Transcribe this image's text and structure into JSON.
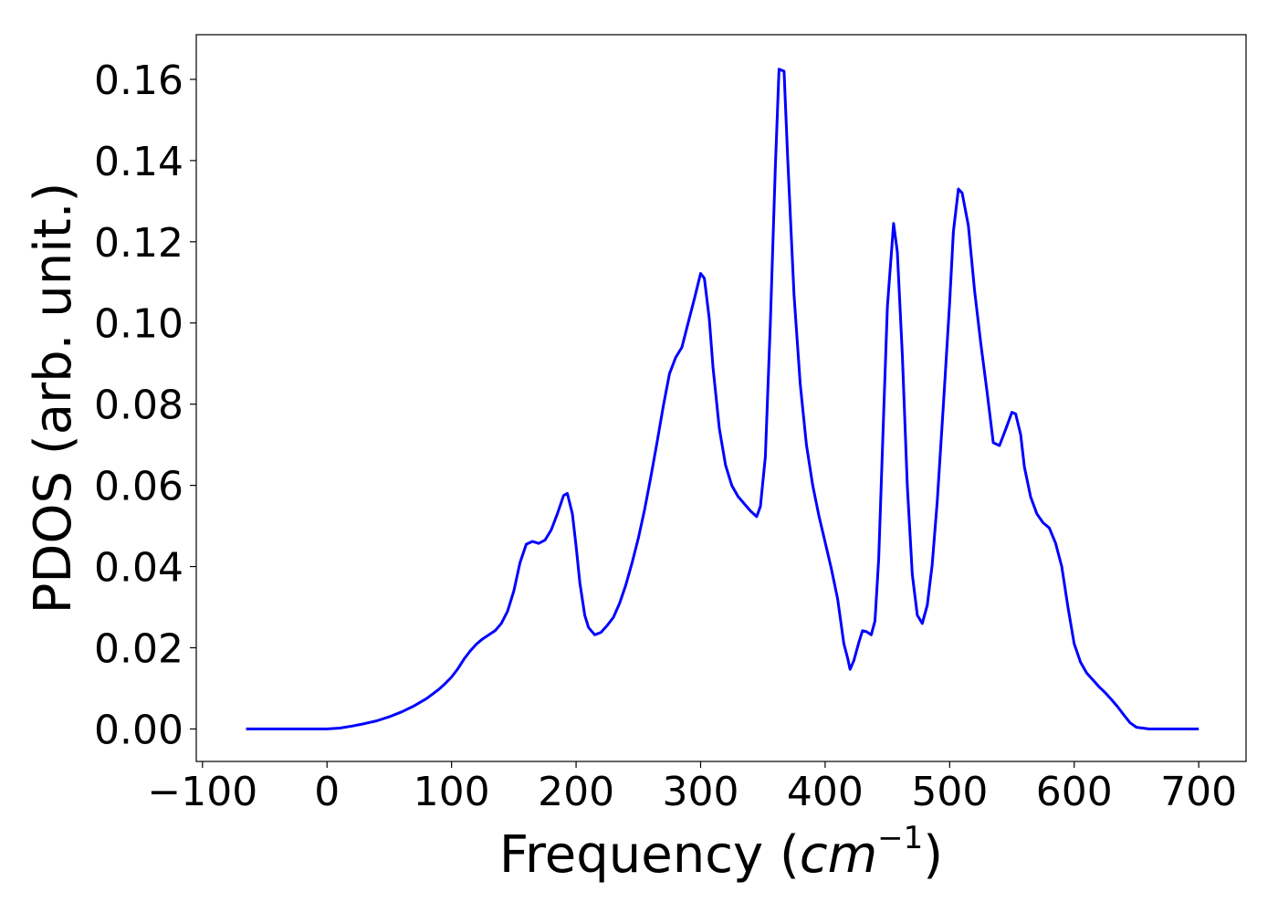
{
  "chart_data": {
    "type": "line",
    "title": "",
    "xlabel_text": "Frequency (",
    "xlabel_math": "cm",
    "xlabel_sup": "−1",
    "xlabel_close": ")",
    "ylabel": "PDOS (arb. unit.)",
    "xlim": [
      -105,
      738
    ],
    "ylim": [
      -0.008,
      0.171
    ],
    "xticks": [
      -100,
      0,
      100,
      200,
      300,
      400,
      500,
      600,
      700
    ],
    "xtick_labels": [
      "−100",
      "0",
      "100",
      "200",
      "300",
      "400",
      "500",
      "600",
      "700"
    ],
    "yticks": [
      0.0,
      0.02,
      0.04,
      0.06,
      0.08,
      0.1,
      0.12,
      0.14,
      0.16
    ],
    "ytick_labels": [
      "0.00",
      "0.02",
      "0.04",
      "0.06",
      "0.08",
      "0.10",
      "0.12",
      "0.14",
      "0.16"
    ],
    "grid": false,
    "line_color": "#0000ff",
    "series": [
      {
        "x": [
          -65,
          -40,
          -20,
          0,
          10,
          20,
          30,
          40,
          50,
          60,
          70,
          80,
          90,
          95,
          100,
          105,
          110,
          115,
          120,
          125,
          130,
          135,
          140,
          145,
          150,
          155,
          160,
          165,
          170,
          175,
          180,
          185,
          190,
          193,
          197,
          200,
          203,
          207,
          210,
          215,
          220,
          225,
          230,
          235,
          240,
          245,
          250,
          255,
          260,
          265,
          270,
          275,
          280,
          285,
          290,
          295,
          300,
          303,
          307,
          310,
          315,
          320,
          325,
          330,
          335,
          340,
          345,
          348,
          352,
          356,
          360,
          363,
          367,
          370,
          375,
          380,
          385,
          390,
          395,
          400,
          405,
          410,
          415,
          418,
          420,
          423,
          427,
          430,
          433,
          437,
          440,
          443,
          447,
          450,
          455,
          458,
          462,
          466,
          470,
          474,
          478,
          482,
          486,
          490,
          495,
          500,
          503,
          507,
          510,
          515,
          520,
          525,
          530,
          535,
          540,
          545,
          550,
          553,
          557,
          560,
          565,
          570,
          575,
          580,
          585,
          590,
          595,
          600,
          605,
          610,
          615,
          620,
          625,
          630,
          635,
          640,
          645,
          650,
          660,
          680,
          700
        ],
        "y": [
          0.0,
          0.0,
          0.0,
          0.0,
          0.0002,
          0.0007,
          0.0013,
          0.002,
          0.003,
          0.0042,
          0.0057,
          0.0075,
          0.0098,
          0.0112,
          0.0128,
          0.0148,
          0.0172,
          0.0192,
          0.0209,
          0.0222,
          0.0232,
          0.0242,
          0.026,
          0.029,
          0.034,
          0.041,
          0.0455,
          0.0462,
          0.0457,
          0.0465,
          0.049,
          0.053,
          0.0575,
          0.058,
          0.053,
          0.045,
          0.036,
          0.028,
          0.025,
          0.0232,
          0.0238,
          0.0255,
          0.0275,
          0.031,
          0.0355,
          0.041,
          0.047,
          0.054,
          0.062,
          0.0705,
          0.0795,
          0.0875,
          0.0915,
          0.094,
          0.1,
          0.106,
          0.1122,
          0.111,
          0.101,
          0.089,
          0.074,
          0.065,
          0.06,
          0.0573,
          0.0555,
          0.0537,
          0.0523,
          0.0548,
          0.067,
          0.1,
          0.138,
          0.1625,
          0.162,
          0.14,
          0.107,
          0.085,
          0.07,
          0.06,
          0.0525,
          0.046,
          0.0395,
          0.032,
          0.021,
          0.0175,
          0.0147,
          0.0168,
          0.0212,
          0.0242,
          0.024,
          0.0232,
          0.0266,
          0.042,
          0.0776,
          0.104,
          0.1245,
          0.1175,
          0.092,
          0.06,
          0.038,
          0.028,
          0.026,
          0.0305,
          0.0405,
          0.056,
          0.08,
          0.105,
          0.1225,
          0.133,
          0.132,
          0.124,
          0.108,
          0.095,
          0.083,
          0.0705,
          0.0698,
          0.0738,
          0.078,
          0.0776,
          0.0725,
          0.0645,
          0.0572,
          0.053,
          0.0508,
          0.0495,
          0.0458,
          0.04,
          0.03,
          0.021,
          0.0165,
          0.0138,
          0.0121,
          0.0104,
          0.0089,
          0.0072,
          0.0054,
          0.0034,
          0.0015,
          0.0004,
          0.0,
          0.0,
          0.0
        ]
      }
    ]
  }
}
